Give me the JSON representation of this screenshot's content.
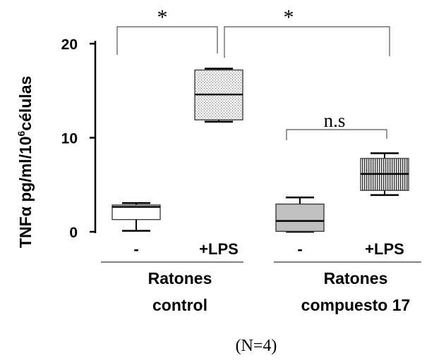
{
  "chart_data": {
    "type": "box",
    "ylabel_main": "TNFα pg/ml/10",
    "ylabel_sup": "6",
    "ylabel_tail": "células",
    "ylim": [
      0,
      20
    ],
    "yticks": [
      {
        "value": 0,
        "label": "0"
      },
      {
        "value": 10,
        "label": "10"
      },
      {
        "value": 20,
        "label": "20"
      }
    ],
    "boxes": [
      {
        "label": "-",
        "group": "Ratones control",
        "min": 0.1,
        "q1": 1.3,
        "median": 2.65,
        "q3": 2.85,
        "max": 3.05,
        "pattern": "white"
      },
      {
        "label": "+LPS",
        "group": "Ratones control",
        "min": 11.7,
        "q1": 11.9,
        "median": 14.6,
        "q3": 17.2,
        "max": 17.35,
        "pattern": "dots"
      },
      {
        "label": "-",
        "group": "Ratones compuesto 17",
        "min": 0.0,
        "q1": 0.05,
        "median": 1.15,
        "q3": 2.95,
        "max": 3.65,
        "pattern": "gray"
      },
      {
        "label": "+LPS",
        "group": "Ratones compuesto 17",
        "min": 3.9,
        "q1": 4.4,
        "median": 6.15,
        "q3": 7.8,
        "max": 8.35,
        "pattern": "stripes"
      }
    ],
    "groups": [
      {
        "line1": "Ratones",
        "line2": "control"
      },
      {
        "line1": "Ratones",
        "line2": "compuesto 17"
      }
    ],
    "annotations": {
      "sig1": "*",
      "sig2": "*",
      "ns": "n.s",
      "n_label": "(N=4)"
    }
  }
}
